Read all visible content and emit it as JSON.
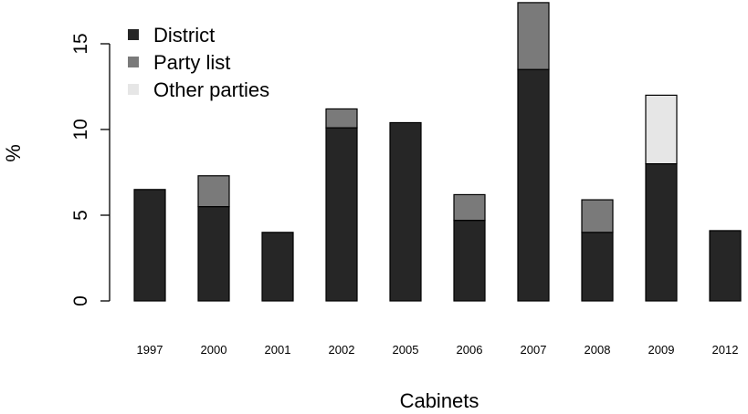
{
  "chart_data": {
    "type": "bar",
    "stacked": true,
    "categories": [
      "1997",
      "2000",
      "2001",
      "2002",
      "2005",
      "2006",
      "2007",
      "2008",
      "2009",
      "2012"
    ],
    "series": [
      {
        "name": "District",
        "color": "#262626",
        "values": [
          6.5,
          5.5,
          4.0,
          10.1,
          10.4,
          4.7,
          13.5,
          4.0,
          8.0,
          4.1
        ]
      },
      {
        "name": "Party list",
        "color": "#7a7a7a",
        "values": [
          0,
          1.8,
          0,
          1.1,
          0,
          1.5,
          3.9,
          1.9,
          0,
          0
        ]
      },
      {
        "name": "Other parties",
        "color": "#e6e6e6",
        "values": [
          0,
          0,
          0,
          0,
          0,
          0,
          0,
          0,
          4.0,
          0
        ]
      }
    ],
    "xlabel": "Cabinets",
    "ylabel": "%",
    "ylim": [
      0,
      17.4
    ],
    "yticks": [
      "0",
      "5",
      "10",
      "15"
    ],
    "legend": "top-left",
    "grid": false
  }
}
